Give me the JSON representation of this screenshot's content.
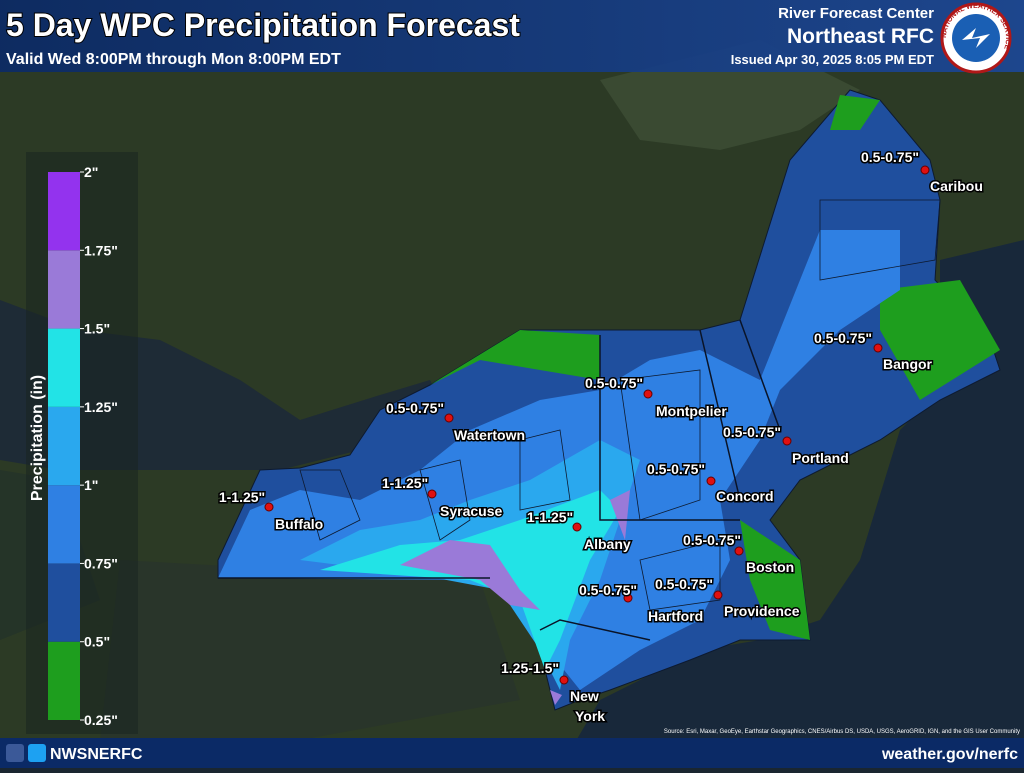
{
  "header": {
    "title": "5 Day WPC Precipitation Forecast",
    "subtitle": "Valid Wed 8:00PM through Mon 8:00PM EDT",
    "center_line": "River Forecast Center",
    "center_name": "Northeast RFC",
    "issued": "Issued Apr 30, 2025 8:05 PM EDT",
    "logo_text": "NATIONAL WEATHER SERVICE"
  },
  "legend": {
    "title": "Precipitation (in)",
    "ticks": [
      "0.25\"",
      "0.5\"",
      "0.75\"",
      "1\"",
      "1.25\"",
      "1.5\"",
      "1.75\"",
      "2\""
    ],
    "colors": [
      "#1e9e1e",
      "#1f4f9e",
      "#2f80e3",
      "#2aa8ee",
      "#22e3e6",
      "#9a7ad8",
      "#9333ee"
    ]
  },
  "cities": [
    {
      "name": "Caribou",
      "amount": "0.5-0.75\""
    },
    {
      "name": "Bangor",
      "amount": "0.5-0.75\""
    },
    {
      "name": "Portland",
      "amount": "0.5-0.75\""
    },
    {
      "name": "Concord",
      "amount": "0.5-0.75\""
    },
    {
      "name": "Boston",
      "amount": "0.5-0.75\""
    },
    {
      "name": "Providence",
      "amount": "0.5-0.75\""
    },
    {
      "name": "Hartford",
      "amount": "0.5-0.75\""
    },
    {
      "name": "New York",
      "amount": "1.25-1.5\""
    },
    {
      "name": "Albany",
      "amount": "1-1.25\""
    },
    {
      "name": "Montpelier",
      "amount": "0.5-0.75\""
    },
    {
      "name": "Syracuse",
      "amount": "1-1.25\""
    },
    {
      "name": "Watertown",
      "amount": "0.5-0.75\""
    },
    {
      "name": "Buffalo",
      "amount": "1-1.25\""
    }
  ],
  "footer": {
    "handle": "NWSNERFC",
    "url": "weather.gov/nerfc",
    "source": "Source: Esri, Maxar, GeoEye, Earthstar Geographics, CNES/Airbus DS, USDA, USGS, AeroGRID, IGN, and the GIS User Community"
  }
}
